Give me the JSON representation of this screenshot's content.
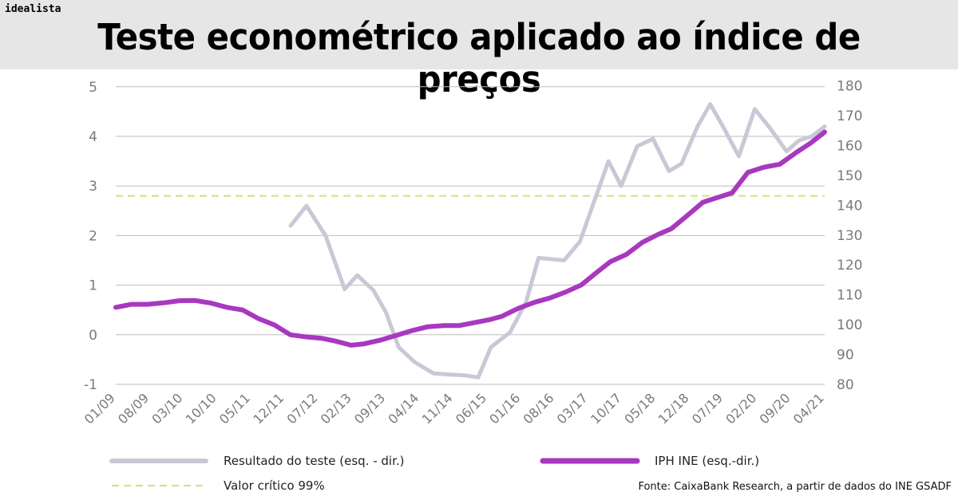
{
  "header": {
    "brand": "idealista",
    "title": "Teste econométrico aplicado ao índice de preços"
  },
  "legend": {
    "test_label": "Resultado do teste (esq. - dir.)",
    "iph_label": "IPH INE (esq.-dir.)",
    "critical_label": "Valor crítico 99%"
  },
  "source": "Fonte: CaixaBank Research, a partir de dados do INE GSADF",
  "colors": {
    "test": "#c9c8d6",
    "iph": "#a838c0",
    "critical": "#c8e87a",
    "grid": "#bdbdbd"
  },
  "chart_data": {
    "type": "line",
    "x_tick_labels": [
      "01/09",
      "08/09",
      "03/10",
      "10/10",
      "05/11",
      "12/11",
      "07/12",
      "02/13",
      "09/13",
      "04/14",
      "11/14",
      "06/15",
      "01/16",
      "08/16",
      "03/17",
      "10/17",
      "05/18",
      "12/18",
      "07/19",
      "02/20",
      "09/20",
      "04/21"
    ],
    "y_left": {
      "ticks": [
        -1,
        0,
        1,
        2,
        3,
        4,
        5
      ],
      "ylim": [
        -1,
        5
      ]
    },
    "y_right": {
      "ticks": [
        80,
        90,
        100,
        110,
        120,
        130,
        140,
        150,
        160,
        170,
        180
      ],
      "ylim": [
        80,
        180
      ]
    },
    "critical_value": 2.8,
    "series": [
      {
        "name": "Resultado do teste (esq. - dir.)",
        "axis": "left",
        "points": [
          [
            5.5,
            2.2
          ],
          [
            6.0,
            2.6
          ],
          [
            6.6,
            2.0
          ],
          [
            7.2,
            0.92
          ],
          [
            7.6,
            1.2
          ],
          [
            8.1,
            0.9
          ],
          [
            8.5,
            0.45
          ],
          [
            8.9,
            -0.25
          ],
          [
            9.4,
            -0.55
          ],
          [
            10.0,
            -0.78
          ],
          [
            10.5,
            -0.8
          ],
          [
            11.0,
            -0.82
          ],
          [
            11.4,
            -0.86
          ],
          [
            11.8,
            -0.25
          ],
          [
            12.4,
            0.05
          ],
          [
            12.9,
            0.65
          ],
          [
            13.3,
            1.55
          ],
          [
            14.1,
            1.5
          ],
          [
            14.6,
            1.88
          ],
          [
            15.0,
            2.6
          ],
          [
            15.5,
            3.5
          ],
          [
            15.9,
            3.0
          ],
          [
            16.4,
            3.8
          ],
          [
            16.9,
            3.95
          ],
          [
            17.4,
            3.3
          ],
          [
            17.8,
            3.45
          ],
          [
            18.3,
            4.2
          ],
          [
            18.7,
            4.65
          ],
          [
            19.1,
            4.2
          ],
          [
            19.6,
            3.6
          ],
          [
            20.1,
            4.55
          ],
          [
            20.6,
            4.15
          ],
          [
            21.1,
            3.7
          ],
          [
            21.5,
            3.92
          ],
          [
            21.9,
            4.0
          ],
          [
            22.3,
            4.2
          ]
        ]
      },
      {
        "name": "IPH INE (esq.-dir.)",
        "axis": "right",
        "points": [
          [
            0.0,
            105.8
          ],
          [
            0.6,
            106.8
          ],
          [
            1.2,
            106.8
          ],
          [
            1.8,
            107.3
          ],
          [
            2.4,
            108.0
          ],
          [
            3.0,
            108.1
          ],
          [
            3.6,
            107.2
          ],
          [
            4.2,
            105.8
          ],
          [
            4.8,
            104.9
          ],
          [
            5.4,
            102.0
          ],
          [
            6.0,
            99.9
          ],
          [
            6.6,
            96.6
          ],
          [
            7.2,
            95.9
          ],
          [
            7.8,
            95.4
          ],
          [
            8.3,
            94.5
          ],
          [
            8.9,
            93.1
          ],
          [
            9.4,
            93.6
          ],
          [
            10.0,
            94.8
          ],
          [
            10.6,
            96.4
          ],
          [
            11.2,
            98.0
          ],
          [
            11.8,
            99.3
          ],
          [
            12.4,
            99.7
          ],
          [
            13.0,
            99.7
          ],
          [
            13.5,
            100.6
          ],
          [
            14.1,
            101.6
          ],
          [
            14.6,
            102.8
          ],
          [
            15.2,
            105.4
          ],
          [
            15.8,
            107.4
          ],
          [
            16.4,
            108.9
          ],
          [
            17.0,
            110.9
          ],
          [
            17.6,
            113.3
          ],
          [
            18.1,
            116.9
          ],
          [
            18.7,
            121.1
          ],
          [
            19.3,
            123.5
          ],
          [
            19.9,
            127.5
          ],
          [
            20.5,
            130.2
          ],
          [
            21.0,
            132.1
          ],
          [
            21.6,
            136.5
          ],
          [
            22.2,
            141.0
          ],
          [
            22.8,
            142.7
          ],
          [
            23.3,
            144.1
          ],
          [
            23.9,
            151.0
          ],
          [
            24.5,
            152.7
          ],
          [
            25.1,
            153.7
          ],
          [
            25.7,
            157.5
          ],
          [
            26.3,
            161.0
          ],
          [
            26.8,
            164.5
          ]
        ]
      }
    ]
  }
}
